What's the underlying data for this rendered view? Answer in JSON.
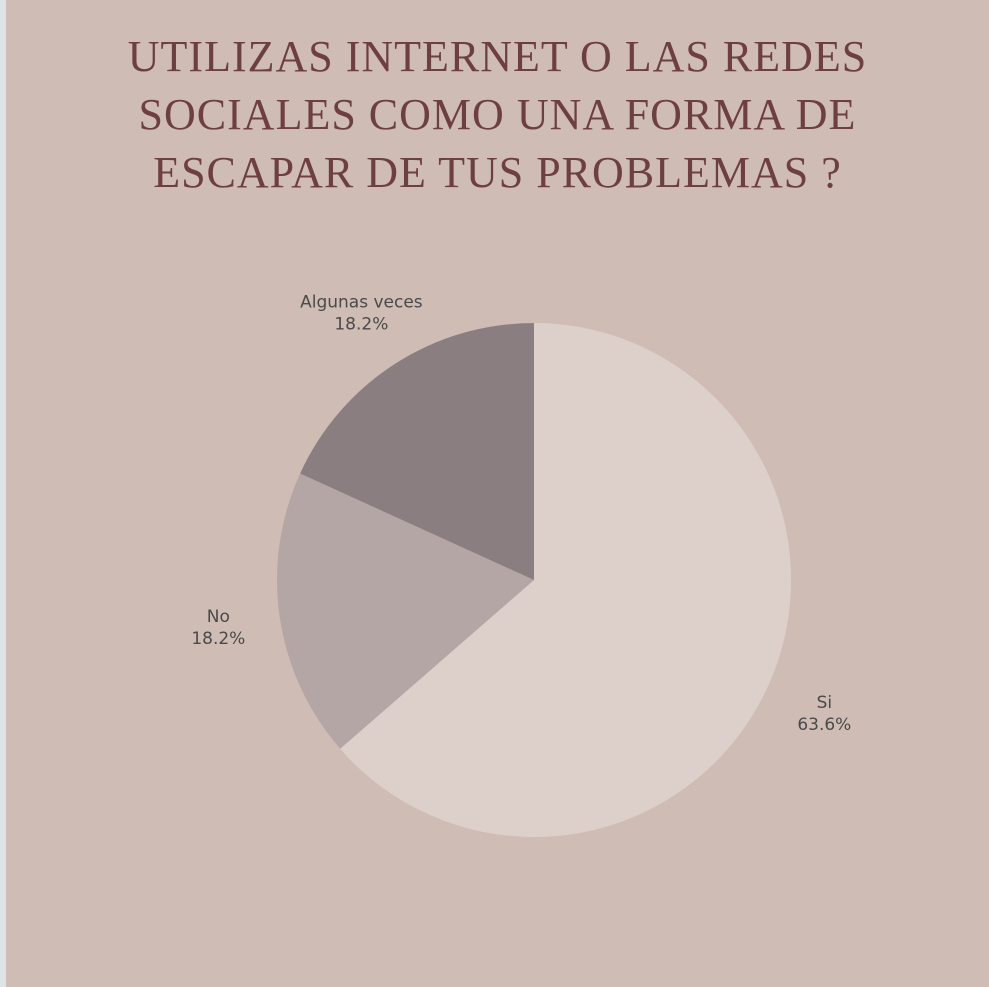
{
  "chart_data": {
    "type": "pie",
    "title_lines": [
      "UTILIZAS INTERNET O LAS REDES",
      "SOCIALES COMO UNA FORMA DE",
      "ESCAPAR DE TUS PROBLEMAS ?"
    ],
    "slices": [
      {
        "label": "Si",
        "value": 63.6,
        "value_label": "63.6%",
        "color": "#ddd0cb"
      },
      {
        "label": "No",
        "value": 18.2,
        "value_label": "18.2%",
        "color": "#b4a6a5"
      },
      {
        "label": "Algunas veces",
        "value": 18.2,
        "value_label": "18.2%",
        "color": "#8a7e80"
      }
    ]
  }
}
